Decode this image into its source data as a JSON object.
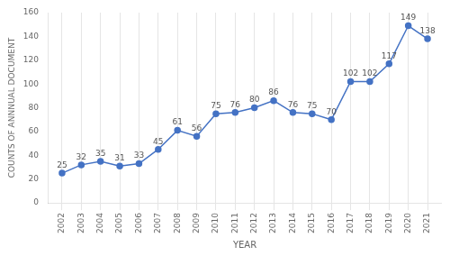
{
  "chart_data": {
    "type": "line",
    "x": [
      2002,
      2003,
      2004,
      2005,
      2006,
      2007,
      2008,
      2009,
      2010,
      2011,
      2012,
      2013,
      2014,
      2015,
      2016,
      2017,
      2018,
      2019,
      2020,
      2021
    ],
    "values": [
      25,
      32,
      35,
      31,
      33,
      45,
      61,
      56,
      75,
      76,
      80,
      86,
      76,
      75,
      70,
      102,
      102,
      117,
      149,
      138
    ],
    "color": "#4472C4",
    "marker": "circle",
    "xlabel": "YEAR",
    "ylabel": "COUNTS OF ANNNUAL DOCUMENT",
    "xlim": [
      2001.3,
      2021.7
    ],
    "xticks": [
      2002,
      2003,
      2004,
      2005,
      2006,
      2007,
      2008,
      2009,
      2010,
      2011,
      2012,
      2013,
      2014,
      2015,
      2016,
      2017,
      2018,
      2019,
      2020,
      2021
    ],
    "ylim": [
      0,
      160
    ],
    "yticks": [
      0,
      20,
      40,
      60,
      80,
      100,
      120,
      140,
      160
    ],
    "grid": "x",
    "data_labels": true
  }
}
